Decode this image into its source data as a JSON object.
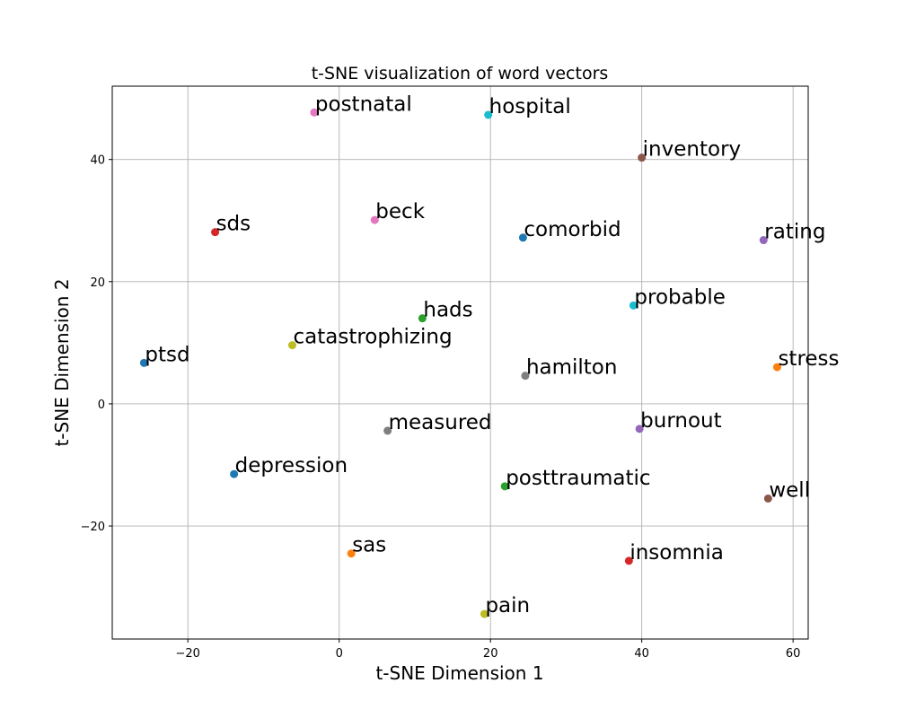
{
  "chart_data": {
    "type": "scatter",
    "title": "t-SNE visualization of word vectors",
    "xlabel": "t-SNE Dimension 1",
    "ylabel": "t-SNE Dimension 2",
    "xlim": [
      -30,
      62
    ],
    "ylim": [
      -38.5,
      52
    ],
    "xticks": [
      -20,
      0,
      20,
      40,
      60
    ],
    "xtick_labels": [
      "−20",
      "0",
      "20",
      "40",
      "60"
    ],
    "yticks": [
      -20,
      0,
      20,
      40
    ],
    "ytick_labels": [
      "−20",
      "0",
      "20",
      "40"
    ],
    "grid": true,
    "points": [
      {
        "label": "postnatal",
        "x": -3.3,
        "y": 47.7,
        "color": "#e377c2"
      },
      {
        "label": "hospital",
        "x": 19.7,
        "y": 47.3,
        "color": "#17becf"
      },
      {
        "label": "inventory",
        "x": 40.0,
        "y": 40.3,
        "color": "#8c564b"
      },
      {
        "label": "sds",
        "x": -16.4,
        "y": 28.1,
        "color": "#d62728"
      },
      {
        "label": "beck",
        "x": 4.7,
        "y": 30.1,
        "color": "#e377c2"
      },
      {
        "label": "comorbid",
        "x": 24.3,
        "y": 27.2,
        "color": "#1f77b4"
      },
      {
        "label": "rating",
        "x": 56.1,
        "y": 26.8,
        "color": "#9467bd"
      },
      {
        "label": "probable",
        "x": 38.9,
        "y": 16.1,
        "color": "#17becf"
      },
      {
        "label": "hads",
        "x": 11.0,
        "y": 14.0,
        "color": "#2ca02c"
      },
      {
        "label": "catastrophizing",
        "x": -6.2,
        "y": 9.6,
        "color": "#bcbd22"
      },
      {
        "label": "ptsd",
        "x": -25.8,
        "y": 6.7,
        "color": "#1f77b4"
      },
      {
        "label": "hamilton",
        "x": 24.6,
        "y": 4.6,
        "color": "#7f7f7f"
      },
      {
        "label": "stress",
        "x": 57.9,
        "y": 6.0,
        "color": "#ff7f0e"
      },
      {
        "label": "measured",
        "x": 6.4,
        "y": -4.4,
        "color": "#7f7f7f"
      },
      {
        "label": "burnout",
        "x": 39.7,
        "y": -4.1,
        "color": "#9467bd"
      },
      {
        "label": "depression",
        "x": -13.9,
        "y": -11.5,
        "color": "#1f77b4"
      },
      {
        "label": "posttraumatic",
        "x": 21.9,
        "y": -13.5,
        "color": "#2ca02c"
      },
      {
        "label": "well",
        "x": 56.7,
        "y": -15.5,
        "color": "#8c564b"
      },
      {
        "label": "sas",
        "x": 1.6,
        "y": -24.5,
        "color": "#ff7f0e"
      },
      {
        "label": "insomnia",
        "x": 38.3,
        "y": -25.7,
        "color": "#d62728"
      },
      {
        "label": "pain",
        "x": 19.2,
        "y": -34.4,
        "color": "#bcbd22"
      }
    ]
  }
}
